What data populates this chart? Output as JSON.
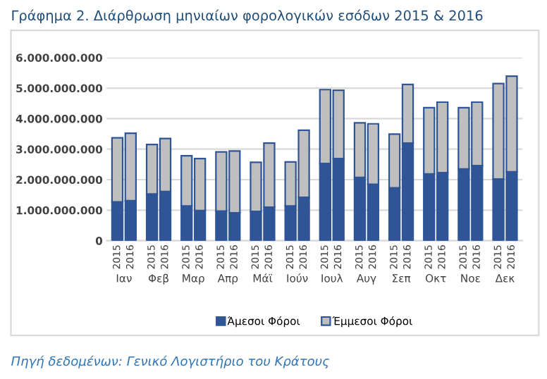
{
  "chart_data": {
    "type": "bar",
    "title": "Γράφημα 2. Διάρθρωση μηνιαίων φορολογικών εσόδων 2015 & 2016",
    "categories": [
      "2015",
      "2016",
      "2015",
      "2016",
      "2015",
      "2016",
      "2015",
      "2016",
      "2015",
      "2016",
      "2015",
      "2016",
      "2015",
      "2016",
      "2015",
      "2016",
      "2015",
      "2016",
      "2015",
      "2016",
      "2015",
      "2016",
      "2015",
      "2016"
    ],
    "stacked": true,
    "series": [
      {
        "name": "Άμεσοι Φόροι",
        "color": "#2f5597",
        "values": [
          1270000000.0,
          1310000000.0,
          1530000000.0,
          1610000000.0,
          1140000000.0,
          990000000.0,
          970000000.0,
          910000000.0,
          960000000.0,
          1100000000.0,
          1140000000.0,
          1420000000.0,
          2530000000.0,
          2690000000.0,
          2070000000.0,
          1850000000.0,
          1730000000.0,
          3200000000.0,
          2190000000.0,
          2230000000.0,
          2350000000.0,
          2460000000.0,
          2020000000.0,
          2260000000.0
        ]
      },
      {
        "name": "Έμμεσοι Φόροι",
        "color": "#bfbfbf",
        "values": [
          2100000000.0,
          2210000000.0,
          1620000000.0,
          1740000000.0,
          1640000000.0,
          1700000000.0,
          1940000000.0,
          2030000000.0,
          1610000000.0,
          2100000000.0,
          1440000000.0,
          2200000000.0,
          2420000000.0,
          2240000000.0,
          1790000000.0,
          1980000000.0,
          1760000000.0,
          1920000000.0,
          2170000000.0,
          2310000000.0,
          2010000000.0,
          2080000000.0,
          3130000000.0,
          3130000000.0
        ]
      }
    ],
    "ylim": [
      0,
      6000000000
    ],
    "yticks": [
      0,
      {
        "value": 1000000000,
        "label": "1.000.000.000"
      },
      {
        "value": 2000000000,
        "label": "2.000.000.000"
      },
      {
        "value": 3000000000,
        "label": "3.000.000.000"
      },
      {
        "value": 4000000000,
        "label": "4.000.000.000"
      },
      {
        "value": 5000000000,
        "label": "5.000.000.000"
      },
      {
        "value": 6000000000,
        "label": "6.000.000.000"
      }
    ],
    "grid": "y",
    "legend": "bottom",
    "annotations": [
      "Ιαν",
      "Φεβ",
      "Μαρ",
      "Απρ",
      "Μάϊ",
      "Ιούν",
      "Ιουλ",
      "Αυγ",
      "Σεπ",
      "Οκτ",
      "Νοε",
      "Δεκ",
      "Πηγή δεδομένων: Γενικό Λογιστήριο του Κράτους"
    ]
  }
}
